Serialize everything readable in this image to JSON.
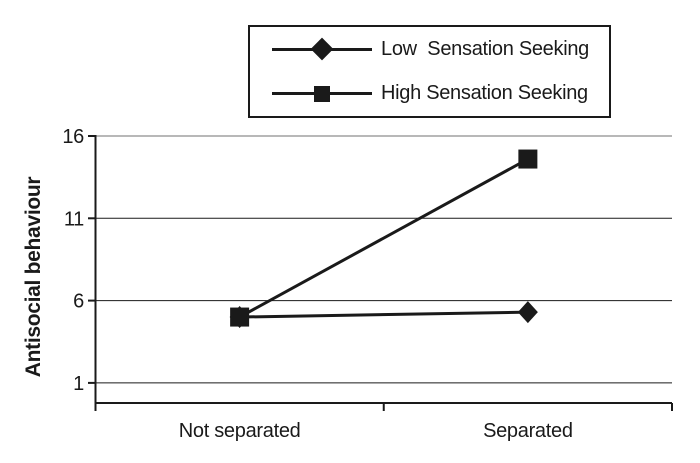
{
  "figure": {
    "background": "#ffffff",
    "ink_color": "#1a1a1a",
    "top_gridline_color": "#b8b8b8"
  },
  "chart_data": {
    "type": "line",
    "title": "",
    "xlabel": "",
    "ylabel": "Antisocial behaviour",
    "categories": [
      "Not separated",
      "Separated"
    ],
    "series": [
      {
        "name": "Low  Sensation Seeking",
        "marker": "diamond",
        "color": "#1a1a1a",
        "values": [
          5.0,
          5.3
        ]
      },
      {
        "name": "High Sensation Seeking",
        "marker": "square",
        "color": "#1a1a1a",
        "values": [
          5.0,
          14.6
        ]
      }
    ],
    "yticks": [
      1,
      6,
      11,
      16
    ],
    "ylim": [
      0,
      16
    ],
    "grid": "horizontal",
    "legend_position": "top"
  }
}
